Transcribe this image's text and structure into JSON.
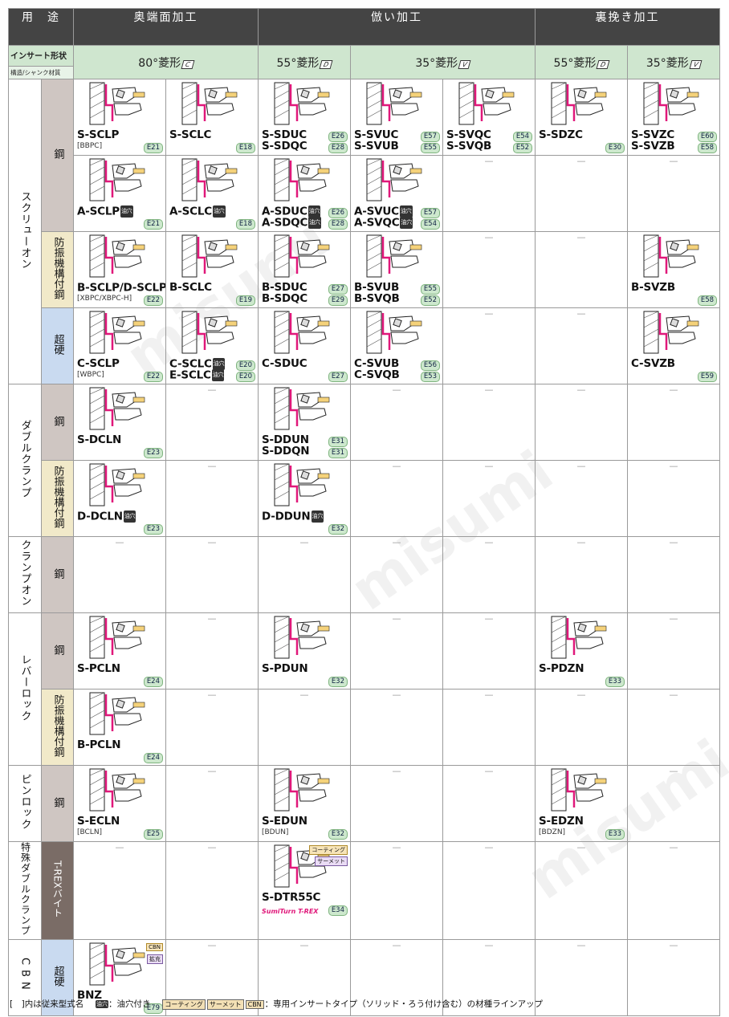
{
  "header": {
    "usage": "用　途",
    "col_groups": [
      "奥端面加工",
      "倣い加工",
      "裏挽き加工"
    ],
    "insert_label": "インサート形状",
    "structure_label": "構造/シャンク材質",
    "shapes": [
      {
        "text": "80°菱形",
        "code": "C"
      },
      {
        "text": "55°菱形",
        "code": "D"
      },
      {
        "text": "35°菱形",
        "code": "V"
      },
      {
        "text": "55°菱形",
        "code": "D"
      },
      {
        "text": "35°菱形",
        "code": "V"
      }
    ]
  },
  "groups": {
    "screw": "スクリューオン",
    "double": "ダブルクランプ",
    "clamp": "クランプオン",
    "lever": "レバーロック",
    "pin": "ピンロック",
    "special": "特殊ダブルクランプ",
    "cbn": "CBN"
  },
  "materials": {
    "steel": "鋼",
    "damp": "防振機構付鋼",
    "carbide": "超硬",
    "trex": "T-REXバイト"
  },
  "dash": "—",
  "oil": "油穴",
  "cells": {
    "r1c1": {
      "n1": "S-SCLP",
      "old": "[BBPC]",
      "p1": "E21"
    },
    "r1c2": {
      "n1": "S-SCLC",
      "p1": "E18"
    },
    "r1c3": {
      "n1": "S-SDUC",
      "n2": "S-SDQC",
      "p1": "E26",
      "p2": "E28"
    },
    "r1c4": {
      "n1": "S-SVUC",
      "n2": "S-SVUB",
      "p1": "E57",
      "p2": "E55"
    },
    "r1c5": {
      "n1": "S-SVQC",
      "n2": "S-SVQB",
      "p1": "E54",
      "p2": "E52"
    },
    "r1c6": {
      "n1": "S-SDZC",
      "p1": "E30"
    },
    "r1c7": {
      "n1": "S-SVZC",
      "n2": "S-SVZB",
      "p1": "E60",
      "p2": "E58"
    },
    "r2c1": {
      "n1": "A-SCLP",
      "p1": "E21"
    },
    "r2c2": {
      "n1": "A-SCLC",
      "p1": "E18"
    },
    "r2c3": {
      "n1": "A-SDUC",
      "n2": "A-SDQC",
      "p1": "E26",
      "p2": "E28"
    },
    "r2c4": {
      "n1": "A-SVUC",
      "n2": "A-SVQC",
      "p1": "E57",
      "p2": "E54"
    },
    "r3c1": {
      "n1": "B-SCLP/D-SCLP",
      "old": "[XBPC/XBPC-H]",
      "p1": "E22"
    },
    "r3c2": {
      "n1": "B-SCLC",
      "p1": "E19"
    },
    "r3c3": {
      "n1": "B-SDUC",
      "n2": "B-SDQC",
      "p1": "E27",
      "p2": "E29"
    },
    "r3c4": {
      "n1": "B-SVUB",
      "n2": "B-SVQB",
      "p1": "E55",
      "p2": "E52"
    },
    "r3c7": {
      "n1": "B-SVZB",
      "p1": "E58"
    },
    "r4c1": {
      "n1": "C-SCLP",
      "old": "[WBPC]",
      "p1": "E22"
    },
    "r4c2": {
      "n1": "C-SCLC",
      "n2": "E-SCLC",
      "p1": "E20",
      "p2": "E20"
    },
    "r4c3": {
      "n1": "C-SDUC",
      "p1": "E27"
    },
    "r4c4": {
      "n1": "C-SVUB",
      "n2": "C-SVQB",
      "p1": "E56",
      "p2": "E53"
    },
    "r4c7": {
      "n1": "C-SVZB",
      "p1": "E59"
    },
    "r5c1": {
      "n1": "S-DCLN",
      "p1": "E23"
    },
    "r5c3": {
      "n1": "S-DDUN",
      "n2": "S-DDQN",
      "p1": "E31",
      "p2": "E31"
    },
    "r6c1": {
      "n1": "D-DCLN",
      "p1": "E23"
    },
    "r6c3": {
      "n1": "D-DDUN",
      "p1": "E32"
    },
    "r8c1": {
      "n1": "S-PCLN",
      "p1": "E24"
    },
    "r8c3": {
      "n1": "S-PDUN",
      "p1": "E32"
    },
    "r8c6": {
      "n1": "S-PDZN",
      "p1": "E33"
    },
    "r9c1": {
      "n1": "B-PCLN",
      "p1": "E24"
    },
    "r10c1": {
      "n1": "S-ECLN",
      "old": "[BCLN]",
      "p1": "E25"
    },
    "r10c3": {
      "n1": "S-EDUN",
      "old": "[BDUN]",
      "p1": "E32"
    },
    "r10c6": {
      "n1": "S-EDZN",
      "old": "[BDZN]",
      "p1": "E33"
    },
    "r11c3": {
      "n1": "S-DTR55C",
      "brand": "SumiTurn T-REX",
      "p1": "E34",
      "tag1": "コーティング",
      "tag2": "サーメット"
    },
    "r12c1": {
      "n1": "BNZ",
      "p1": "E79",
      "tag1": "CBN",
      "tag2": "拡充"
    }
  },
  "footer": {
    "note1": "[　]内は従来型式名",
    "oil_note": "：油穴付き",
    "chips": [
      "コーティング",
      "サーメット",
      "CBN"
    ],
    "note2": "：専用インサートタイプ（ソリッド・ろう付け含む）の材種ラインアップ"
  },
  "watermark": "misumi",
  "colors": {
    "header": "#444444",
    "subheader": "#cfe6cf",
    "steel": "#cfc6c2",
    "damp": "#f1e9c9",
    "carbide": "#c9daf0",
    "trex": "#7a6c66",
    "accent": "#e0187a",
    "page_badge": "#cde8cd"
  }
}
